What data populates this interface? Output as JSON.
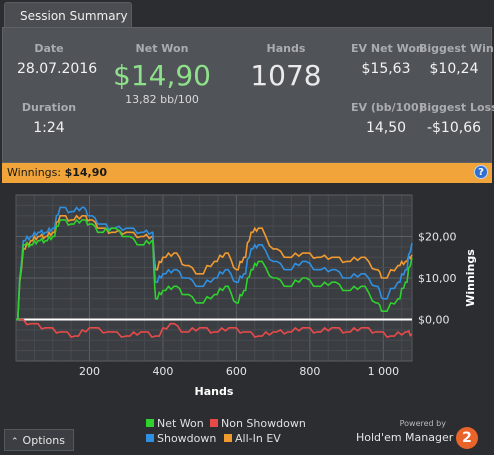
{
  "tab": {
    "label": "Session Summary"
  },
  "stats": {
    "date": {
      "label": "Date",
      "value": "28.07.2016"
    },
    "net_won": {
      "label": "Net Won",
      "value": "$14,90",
      "sub": "13,82 bb/100",
      "color": "#8fe08a"
    },
    "hands": {
      "label": "Hands",
      "value": "1078"
    },
    "ev_net_won": {
      "label": "EV Net Won",
      "value": "$15,63"
    },
    "biggest_win": {
      "label": "Biggest Win",
      "value": "$10,24"
    },
    "duration": {
      "label": "Duration",
      "value": "1:24"
    },
    "ev_bb100": {
      "label": "EV (bb/100)",
      "value": "14,50"
    },
    "biggest_loss": {
      "label": "Biggest Loss",
      "value": "-$10,66"
    }
  },
  "banner": {
    "label": "Winnings:",
    "value": "$14,90",
    "help": "?"
  },
  "chart_data": {
    "type": "line",
    "xlabel": "Hands",
    "ylabel": "Winnings",
    "xlim": [
      0,
      1078
    ],
    "ylim": [
      -10,
      30
    ],
    "x_ticks": [
      200,
      400,
      600,
      800,
      1000
    ],
    "x_tick_labels": [
      "200",
      "400",
      "600",
      "800",
      "1 000"
    ],
    "y_ticks": [
      0,
      10,
      20
    ],
    "y_tick_labels": [
      "$0,00",
      "$10,00",
      "$20,00"
    ],
    "grid": true,
    "legend": "bottom",
    "series": [
      {
        "name": "Net Won",
        "color": "#2fd12f",
        "x": [
          0,
          20,
          40,
          60,
          80,
          100,
          120,
          150,
          180,
          200,
          230,
          260,
          300,
          340,
          370,
          380,
          400,
          430,
          460,
          500,
          540,
          570,
          600,
          620,
          640,
          660,
          700,
          740,
          780,
          820,
          860,
          900,
          940,
          980,
          1000,
          1040,
          1060,
          1078
        ],
        "y": [
          0,
          18,
          18,
          19,
          19,
          20,
          24,
          23,
          24,
          23,
          21,
          22,
          20,
          18,
          19,
          5,
          7,
          8,
          6,
          4,
          6,
          8,
          4,
          7,
          12,
          14,
          10,
          8,
          10,
          8,
          9,
          7,
          8,
          4,
          2,
          5,
          9,
          14.9
        ]
      },
      {
        "name": "Non Showdown",
        "color": "#e84a4a",
        "x": [
          0,
          40,
          80,
          120,
          160,
          200,
          250,
          300,
          340,
          380,
          420,
          460,
          500,
          540,
          580,
          620,
          660,
          700,
          740,
          780,
          820,
          860,
          900,
          940,
          980,
          1020,
          1060,
          1078
        ],
        "y": [
          0,
          -1,
          -2,
          -3,
          -4,
          -2,
          -3,
          -4,
          -3,
          -4,
          -1,
          -3,
          -2,
          -3,
          -2,
          -3,
          -4,
          -3,
          -3,
          -2,
          -3,
          -2,
          -3,
          -2,
          -3,
          -4,
          -3,
          -3.5
        ]
      },
      {
        "name": "Showdown",
        "color": "#2f8fe0",
        "x": [
          0,
          20,
          40,
          60,
          80,
          100,
          120,
          150,
          180,
          200,
          230,
          260,
          300,
          340,
          370,
          380,
          400,
          430,
          460,
          500,
          540,
          570,
          600,
          620,
          640,
          660,
          700,
          740,
          780,
          820,
          860,
          900,
          940,
          980,
          1000,
          1040,
          1060,
          1078
        ],
        "y": [
          0,
          19,
          20,
          21,
          21,
          22,
          27,
          26,
          27,
          25,
          23,
          22,
          22,
          21,
          21,
          9,
          11,
          12,
          10,
          8,
          10,
          12,
          9,
          11,
          17,
          18,
          14,
          12,
          14,
          12,
          12,
          10,
          11,
          8,
          5,
          9,
          12,
          18.4
        ]
      },
      {
        "name": "All-In EV",
        "color": "#f09a30",
        "x": [
          0,
          20,
          40,
          60,
          80,
          100,
          120,
          150,
          180,
          200,
          230,
          260,
          300,
          340,
          370,
          380,
          400,
          430,
          460,
          500,
          540,
          570,
          600,
          620,
          640,
          660,
          700,
          740,
          780,
          820,
          860,
          900,
          940,
          980,
          1000,
          1040,
          1060,
          1078
        ],
        "y": [
          0,
          17,
          19,
          20,
          20,
          21,
          25,
          24,
          25,
          24,
          22,
          21,
          21,
          20,
          20,
          12,
          15,
          16,
          13,
          11,
          14,
          16,
          12,
          15,
          21,
          22,
          17,
          15,
          16,
          15,
          15,
          14,
          15,
          12,
          10,
          13,
          14,
          15.6
        ]
      }
    ]
  },
  "footer": {
    "options_label": "Options",
    "powered_by": "Powered by",
    "brand": "Hold'em Manager",
    "logo_text": "2"
  }
}
